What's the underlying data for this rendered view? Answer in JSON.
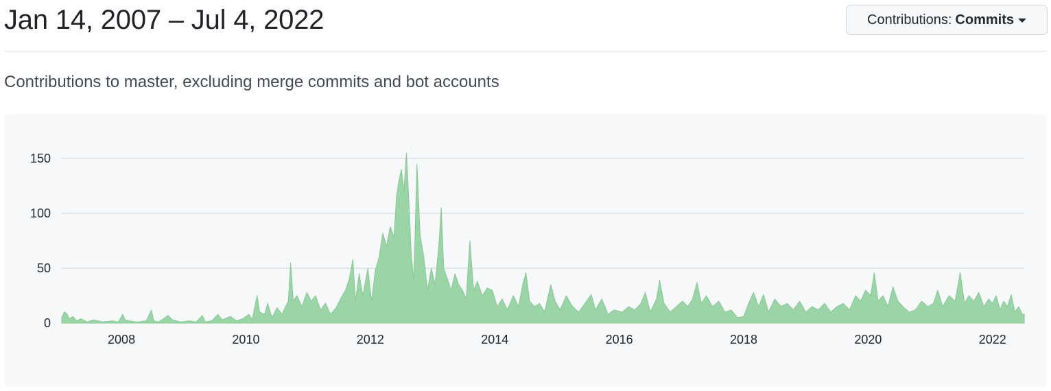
{
  "header": {
    "date_range": "Jan 14, 2007 – Jul 4, 2022",
    "contributions_button": {
      "prefix": "Contributions:",
      "value": "Commits",
      "icon": "triangle-down-icon"
    }
  },
  "subtitle": "Contributions to master, excluding merge commits and bot accounts",
  "colors": {
    "area_fill": "#9bd4a6",
    "area_stroke": "#87c896",
    "grid": "#d0d7de",
    "panel_bg": "#f6f8fa"
  },
  "chart_data": {
    "type": "area",
    "title": "",
    "xlabel": "",
    "ylabel": "",
    "xlim": [
      2007.04,
      2022.51
    ],
    "ylim": [
      0,
      150
    ],
    "y_ticks": [
      0,
      50,
      100,
      150
    ],
    "x_ticks": [
      2008,
      2010,
      2012,
      2014,
      2016,
      2018,
      2020,
      2022
    ],
    "grid": true,
    "series": [
      {
        "points": [
          [
            2007.04,
            5
          ],
          [
            2007.08,
            10
          ],
          [
            2007.12,
            9
          ],
          [
            2007.16,
            4
          ],
          [
            2007.22,
            6
          ],
          [
            2007.28,
            2
          ],
          [
            2007.35,
            4
          ],
          [
            2007.45,
            1
          ],
          [
            2007.55,
            3
          ],
          [
            2007.7,
            1
          ],
          [
            2007.85,
            2
          ],
          [
            2007.95,
            1
          ],
          [
            2008.02,
            8
          ],
          [
            2008.06,
            3
          ],
          [
            2008.12,
            2
          ],
          [
            2008.25,
            1
          ],
          [
            2008.4,
            2
          ],
          [
            2008.48,
            12
          ],
          [
            2008.52,
            2
          ],
          [
            2008.6,
            1
          ],
          [
            2008.75,
            7
          ],
          [
            2008.82,
            3
          ],
          [
            2008.95,
            1
          ],
          [
            2009.1,
            2
          ],
          [
            2009.2,
            1
          ],
          [
            2009.3,
            7
          ],
          [
            2009.35,
            1
          ],
          [
            2009.45,
            2
          ],
          [
            2009.55,
            8
          ],
          [
            2009.62,
            3
          ],
          [
            2009.75,
            6
          ],
          [
            2009.85,
            2
          ],
          [
            2009.95,
            4
          ],
          [
            2010.05,
            8
          ],
          [
            2010.1,
            3
          ],
          [
            2010.18,
            25
          ],
          [
            2010.22,
            10
          ],
          [
            2010.3,
            8
          ],
          [
            2010.35,
            18
          ],
          [
            2010.42,
            5
          ],
          [
            2010.5,
            14
          ],
          [
            2010.58,
            8
          ],
          [
            2010.68,
            20
          ],
          [
            2010.72,
            55
          ],
          [
            2010.76,
            20
          ],
          [
            2010.82,
            25
          ],
          [
            2010.9,
            15
          ],
          [
            2010.98,
            28
          ],
          [
            2011.05,
            20
          ],
          [
            2011.12,
            25
          ],
          [
            2011.2,
            12
          ],
          [
            2011.28,
            18
          ],
          [
            2011.36,
            8
          ],
          [
            2011.45,
            14
          ],
          [
            2011.52,
            22
          ],
          [
            2011.6,
            30
          ],
          [
            2011.66,
            40
          ],
          [
            2011.72,
            58
          ],
          [
            2011.76,
            20
          ],
          [
            2011.82,
            45
          ],
          [
            2011.88,
            25
          ],
          [
            2011.96,
            50
          ],
          [
            2012.02,
            20
          ],
          [
            2012.08,
            48
          ],
          [
            2012.14,
            60
          ],
          [
            2012.2,
            82
          ],
          [
            2012.26,
            70
          ],
          [
            2012.32,
            88
          ],
          [
            2012.38,
            78
          ],
          [
            2012.42,
            115
          ],
          [
            2012.46,
            130
          ],
          [
            2012.5,
            140
          ],
          [
            2012.54,
            120
          ],
          [
            2012.58,
            155
          ],
          [
            2012.62,
            110
          ],
          [
            2012.66,
            60
          ],
          [
            2012.7,
            40
          ],
          [
            2012.75,
            145
          ],
          [
            2012.8,
            80
          ],
          [
            2012.86,
            60
          ],
          [
            2012.92,
            30
          ],
          [
            2012.98,
            50
          ],
          [
            2013.04,
            35
          ],
          [
            2013.1,
            70
          ],
          [
            2013.14,
            105
          ],
          [
            2013.18,
            50
          ],
          [
            2013.24,
            40
          ],
          [
            2013.3,
            30
          ],
          [
            2013.36,
            45
          ],
          [
            2013.42,
            35
          ],
          [
            2013.48,
            30
          ],
          [
            2013.54,
            22
          ],
          [
            2013.6,
            75
          ],
          [
            2013.66,
            30
          ],
          [
            2013.72,
            38
          ],
          [
            2013.8,
            25
          ],
          [
            2013.88,
            32
          ],
          [
            2013.96,
            30
          ],
          [
            2014.04,
            15
          ],
          [
            2014.12,
            22
          ],
          [
            2014.2,
            12
          ],
          [
            2014.3,
            25
          ],
          [
            2014.38,
            15
          ],
          [
            2014.45,
            35
          ],
          [
            2014.5,
            46
          ],
          [
            2014.56,
            20
          ],
          [
            2014.64,
            15
          ],
          [
            2014.72,
            18
          ],
          [
            2014.8,
            10
          ],
          [
            2014.9,
            35
          ],
          [
            2014.97,
            20
          ],
          [
            2015.05,
            12
          ],
          [
            2015.15,
            25
          ],
          [
            2015.25,
            15
          ],
          [
            2015.35,
            10
          ],
          [
            2015.45,
            18
          ],
          [
            2015.55,
            26
          ],
          [
            2015.62,
            12
          ],
          [
            2015.72,
            22
          ],
          [
            2015.82,
            8
          ],
          [
            2015.92,
            12
          ],
          [
            2016.05,
            10
          ],
          [
            2016.15,
            15
          ],
          [
            2016.25,
            12
          ],
          [
            2016.35,
            18
          ],
          [
            2016.42,
            28
          ],
          [
            2016.5,
            10
          ],
          [
            2016.6,
            22
          ],
          [
            2016.65,
            39
          ],
          [
            2016.72,
            18
          ],
          [
            2016.82,
            10
          ],
          [
            2016.92,
            15
          ],
          [
            2017.02,
            20
          ],
          [
            2017.1,
            15
          ],
          [
            2017.18,
            22
          ],
          [
            2017.25,
            37
          ],
          [
            2017.32,
            18
          ],
          [
            2017.4,
            25
          ],
          [
            2017.5,
            15
          ],
          [
            2017.6,
            20
          ],
          [
            2017.7,
            10
          ],
          [
            2017.8,
            12
          ],
          [
            2017.9,
            5
          ],
          [
            2018.0,
            6
          ],
          [
            2018.08,
            18
          ],
          [
            2018.16,
            28
          ],
          [
            2018.24,
            15
          ],
          [
            2018.32,
            26
          ],
          [
            2018.4,
            10
          ],
          [
            2018.5,
            22
          ],
          [
            2018.6,
            15
          ],
          [
            2018.7,
            18
          ],
          [
            2018.8,
            12
          ],
          [
            2018.9,
            20
          ],
          [
            2019.0,
            10
          ],
          [
            2019.1,
            15
          ],
          [
            2019.2,
            12
          ],
          [
            2019.3,
            18
          ],
          [
            2019.4,
            10
          ],
          [
            2019.5,
            15
          ],
          [
            2019.6,
            18
          ],
          [
            2019.7,
            12
          ],
          [
            2019.8,
            25
          ],
          [
            2019.88,
            20
          ],
          [
            2019.96,
            30
          ],
          [
            2020.04,
            25
          ],
          [
            2020.1,
            46
          ],
          [
            2020.16,
            20
          ],
          [
            2020.24,
            25
          ],
          [
            2020.32,
            15
          ],
          [
            2020.4,
            33
          ],
          [
            2020.48,
            20
          ],
          [
            2020.56,
            15
          ],
          [
            2020.66,
            10
          ],
          [
            2020.76,
            12
          ],
          [
            2020.86,
            20
          ],
          [
            2020.96,
            15
          ],
          [
            2021.05,
            18
          ],
          [
            2021.12,
            30
          ],
          [
            2021.2,
            15
          ],
          [
            2021.3,
            25
          ],
          [
            2021.4,
            20
          ],
          [
            2021.48,
            46
          ],
          [
            2021.55,
            18
          ],
          [
            2021.62,
            25
          ],
          [
            2021.7,
            20
          ],
          [
            2021.78,
            28
          ],
          [
            2021.86,
            15
          ],
          [
            2021.94,
            22
          ],
          [
            2022.0,
            18
          ],
          [
            2022.06,
            25
          ],
          [
            2022.12,
            12
          ],
          [
            2022.18,
            20
          ],
          [
            2022.24,
            15
          ],
          [
            2022.3,
            26
          ],
          [
            2022.36,
            10
          ],
          [
            2022.42,
            15
          ],
          [
            2022.48,
            8
          ],
          [
            2022.51,
            8
          ]
        ]
      }
    ]
  }
}
